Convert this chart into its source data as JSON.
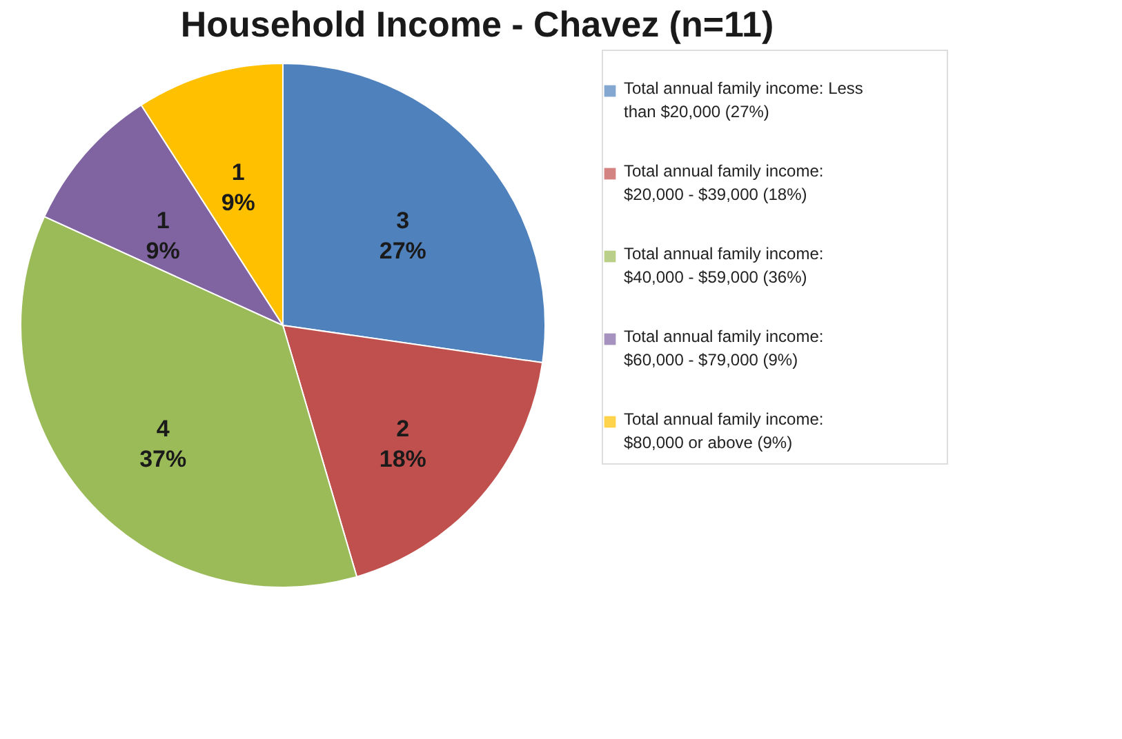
{
  "chart_data": {
    "type": "pie",
    "title": "Household Income - Chavez (n=11)",
    "categories": [
      "Total annual family income: Less than $20,000 (27%)",
      "Total annual family income: $20,000 - $39,000 (18%)",
      "Total annual family income: $40,000 - $59,000 (36%)",
      "Total annual family income: $60,000 - $79,000 (9%)",
      "Total annual family income: $80,000 or above (9%)"
    ],
    "values": [
      3,
      2,
      4,
      1,
      1
    ],
    "value_labels": [
      "3\n27%",
      "2\n18%",
      "4\n37%",
      "1\n9%",
      "1\n9%"
    ],
    "colors": [
      "#4f81bd",
      "#c0504d",
      "#9bbb59",
      "#8064a2",
      "#ffc000"
    ],
    "legend": "right"
  }
}
